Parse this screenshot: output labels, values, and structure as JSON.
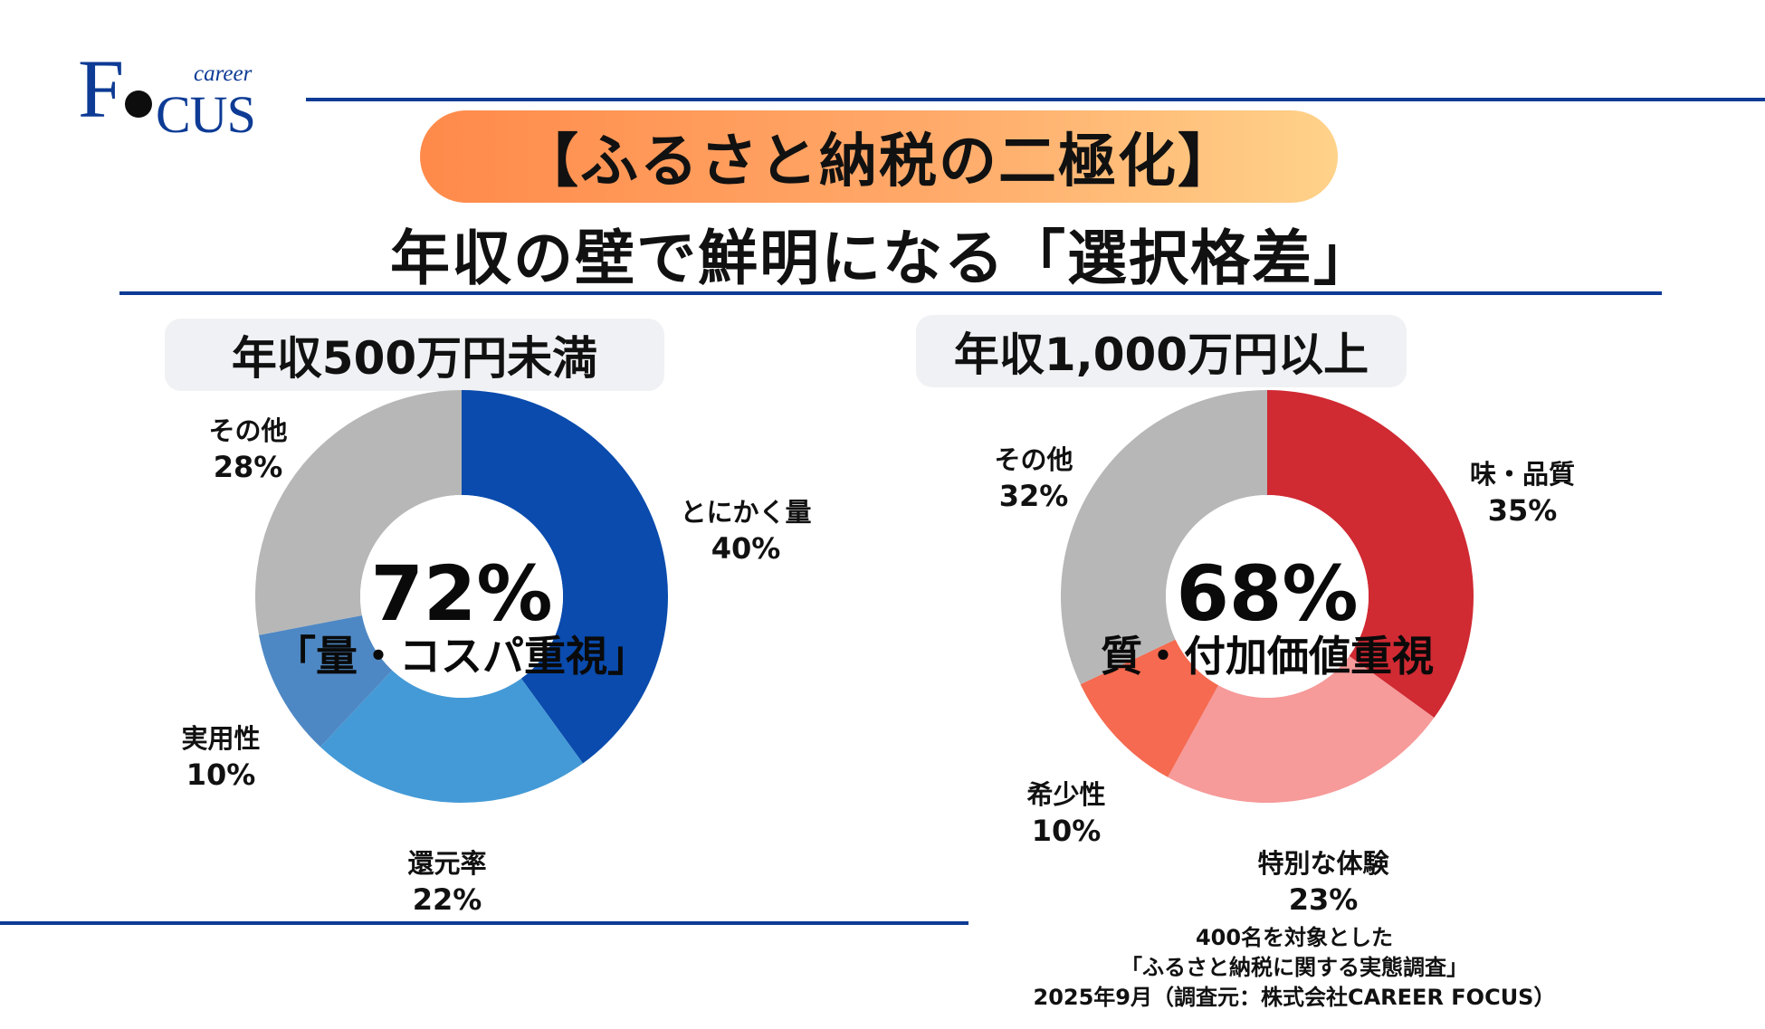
{
  "logo": {
    "main": "F",
    "rest": "CUS",
    "small": "career"
  },
  "title": "【ふるさと納税の二極化】",
  "subtitle": "年収の壁で鮮明になる「選択格差」",
  "colors": {
    "accent": "#0d3b95",
    "pill_start": "#ff8a4a",
    "pill_end": "#ffd28a"
  },
  "chart_data": [
    {
      "type": "pie",
      "title": "年収500万円未満",
      "center_value": "72%",
      "center_label": "「量・コスパ重視」",
      "slices": [
        {
          "label": "とにかく量",
          "value": 40,
          "display": "40%",
          "color": "#0a4bad"
        },
        {
          "label": "還元率",
          "value": 22,
          "display": "22%",
          "color": "#449ad6"
        },
        {
          "label": "実用性",
          "value": 10,
          "display": "10%",
          "color": "#4e88c4"
        },
        {
          "label": "その他",
          "value": 28,
          "display": "28%",
          "color": "#b7b7b7"
        }
      ]
    },
    {
      "type": "pie",
      "title": "年収1,000万円以上",
      "center_value": "68%",
      "center_label": "質・付加価値重視",
      "slices": [
        {
          "label": "味・品質",
          "value": 35,
          "display": "35%",
          "color": "#d02a33"
        },
        {
          "label": "特別な体験",
          "value": 23,
          "display": "23%",
          "color": "#f69a9a"
        },
        {
          "label": "希少性",
          "value": 10,
          "display": "10%",
          "color": "#f56a50"
        },
        {
          "label": "その他",
          "value": 32,
          "display": "32%",
          "color": "#b7b7b7"
        }
      ]
    }
  ],
  "source": {
    "line1": "400名を対象とした",
    "line2": "「ふるさと納税に関する実態調査」",
    "line3": "2025年9月（調査元：株式会社CAREER FOCUS）"
  }
}
